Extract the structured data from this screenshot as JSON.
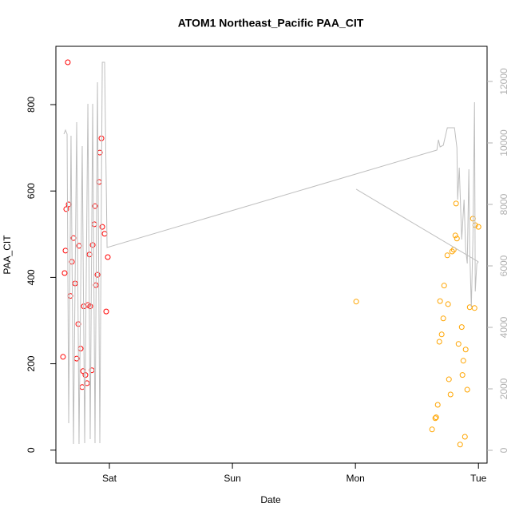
{
  "chart_data": {
    "type": "scatter",
    "title": "ATOM1 Northeast_Pacific PAA_CIT",
    "x_label": "Date",
    "y_label": "PAA_CIT",
    "xlim": [
      -0.435,
      3.07
    ],
    "ylim": [
      -30,
      935
    ],
    "y2lim": [
      -416,
      13143
    ],
    "xticks": [
      {
        "value": 0,
        "label": "Sat"
      },
      {
        "value": 1,
        "label": "Sun"
      },
      {
        "value": 2,
        "label": "Mon"
      },
      {
        "value": 3,
        "label": "Tue"
      }
    ],
    "yticks": [
      0,
      200,
      400,
      600,
      800
    ],
    "y2ticks": [
      0,
      2000,
      4000,
      6000,
      8000,
      10000,
      12000
    ],
    "series": [
      {
        "type": "scatter",
        "color": "#ff0000",
        "x": [
          -0.338,
          -0.331,
          -0.351,
          -0.357,
          -0.364,
          -0.305,
          -0.292,
          -0.318,
          -0.279,
          -0.247,
          -0.253,
          -0.266,
          -0.377,
          -0.234,
          -0.214,
          -0.221,
          -0.195,
          -0.182,
          -0.208,
          -0.175,
          -0.156,
          -0.162,
          -0.136,
          -0.143,
          -0.123,
          -0.117,
          -0.11,
          -0.097,
          -0.084,
          -0.078,
          -0.065,
          -0.058,
          -0.039,
          -0.013,
          -0.026
        ],
        "values": [
          898,
          569,
          558,
          462,
          410,
          436,
          491,
          357,
          386,
          473,
          292,
          212,
          216,
          235,
          183,
          146,
          174,
          155,
          333,
          336,
          333,
          453,
          475,
          185,
          523,
          565,
          382,
          406,
          621,
          689,
          722,
          517,
          501,
          447,
          321
        ]
      },
      {
        "type": "scatter",
        "color": "#ffa500",
        "x": [
          2.006,
          2.623,
          2.649,
          2.656,
          2.669,
          2.682,
          2.688,
          2.701,
          2.714,
          2.721,
          2.747,
          2.753,
          2.76,
          2.773,
          2.786,
          2.799,
          2.812,
          2.818,
          2.825,
          2.838,
          2.851,
          2.864,
          2.87,
          2.877,
          2.89,
          2.896,
          2.909,
          2.929,
          2.955,
          2.968,
          2.974,
          3.0
        ],
        "values": [
          344,
          48,
          74,
          76,
          105,
          251,
          345,
          268,
          305,
          381,
          451,
          338,
          164,
          129,
          460,
          464,
          497,
          571,
          490,
          246,
          13,
          285,
          174,
          207,
          31,
          233,
          140,
          331,
          536,
          329,
          521,
          517
        ]
      },
      {
        "type": "line",
        "axis": "y2",
        "color": "#bebebe",
        "x": [
          -0.37,
          -0.357,
          -0.344,
          -0.331,
          -0.312,
          -0.292,
          -0.266,
          -0.247,
          -0.221,
          -0.201,
          -0.175,
          -0.156,
          -0.136,
          -0.117,
          -0.097,
          -0.078,
          -0.058,
          -0.039,
          -0.019,
          2.617,
          2.662,
          2.675,
          2.688,
          2.714,
          2.747,
          2.773,
          2.805,
          2.825,
          2.831,
          2.844,
          2.864,
          2.883,
          2.896,
          2.909,
          2.922,
          2.929,
          2.942,
          2.955,
          2.968,
          2.974,
          2.987,
          3.0,
          null,
          2.006,
          3.0
        ],
        "values": [
          10286,
          10416,
          10286,
          883,
          10234,
          208,
          10675,
          208,
          9896,
          234,
          11273,
          364,
          11273,
          234,
          11974,
          234,
          12623,
          12623,
          6597,
          9714,
          9766,
          10104,
          9870,
          9922,
          10494,
          10494,
          10494,
          9844,
          8156,
          9195,
          6857,
          8156,
          6545,
          6078,
          9143,
          6545,
          4649,
          6857,
          11325,
          5169,
          6078,
          6130,
          null,
          8494,
          6130
        ]
      }
    ]
  }
}
